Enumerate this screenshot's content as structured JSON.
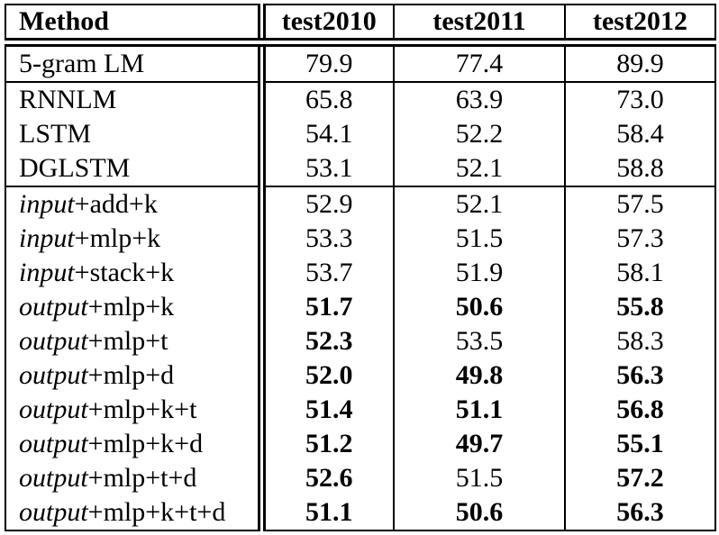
{
  "table": {
    "header": {
      "method": "Method",
      "c1": "test2010",
      "c2": "test2011",
      "c3": "test2012"
    },
    "rows": [
      {
        "em": "",
        "name": "5-gram LM",
        "c1": "79.9",
        "c2": "77.4",
        "c3": "89.9",
        "b1": false,
        "b2": false,
        "b3": false
      },
      {
        "em": "",
        "name": "RNNLM",
        "c1": "65.8",
        "c2": "63.9",
        "c3": "73.0",
        "b1": false,
        "b2": false,
        "b3": false
      },
      {
        "em": "",
        "name": "LSTM",
        "c1": "54.1",
        "c2": "52.2",
        "c3": "58.4",
        "b1": false,
        "b2": false,
        "b3": false
      },
      {
        "em": "",
        "name": "DGLSTM",
        "c1": "53.1",
        "c2": "52.1",
        "c3": "58.8",
        "b1": false,
        "b2": false,
        "b3": false
      },
      {
        "em": "input",
        "name": "+add+k",
        "c1": "52.9",
        "c2": "52.1",
        "c3": "57.5",
        "b1": false,
        "b2": false,
        "b3": false
      },
      {
        "em": "input",
        "name": "+mlp+k",
        "c1": "53.3",
        "c2": "51.5",
        "c3": "57.3",
        "b1": false,
        "b2": false,
        "b3": false
      },
      {
        "em": "input",
        "name": "+stack+k",
        "c1": "53.7",
        "c2": "51.9",
        "c3": "58.1",
        "b1": false,
        "b2": false,
        "b3": false
      },
      {
        "em": "output",
        "name": "+mlp+k",
        "c1": "51.7",
        "c2": "50.6",
        "c3": "55.8",
        "b1": true,
        "b2": true,
        "b3": true
      },
      {
        "em": "output",
        "name": "+mlp+t",
        "c1": "52.3",
        "c2": "53.5",
        "c3": "58.3",
        "b1": true,
        "b2": false,
        "b3": false
      },
      {
        "em": "output",
        "name": "+mlp+d",
        "c1": "52.0",
        "c2": "49.8",
        "c3": "56.3",
        "b1": true,
        "b2": true,
        "b3": true
      },
      {
        "em": "output",
        "name": "+mlp+k+t",
        "c1": "51.4",
        "c2": "51.1",
        "c3": "56.8",
        "b1": true,
        "b2": true,
        "b3": true
      },
      {
        "em": "output",
        "name": "+mlp+k+d",
        "c1": "51.2",
        "c2": "49.7",
        "c3": "55.1",
        "b1": true,
        "b2": true,
        "b3": true
      },
      {
        "em": "output",
        "name": "+mlp+t+d",
        "c1": "52.6",
        "c2": "51.5",
        "c3": "57.2",
        "b1": true,
        "b2": false,
        "b3": true
      },
      {
        "em": "output",
        "name": "+mlp+k+t+d",
        "c1": "51.1",
        "c2": "50.6",
        "c3": "56.3",
        "b1": true,
        "b2": true,
        "b3": true
      }
    ]
  }
}
